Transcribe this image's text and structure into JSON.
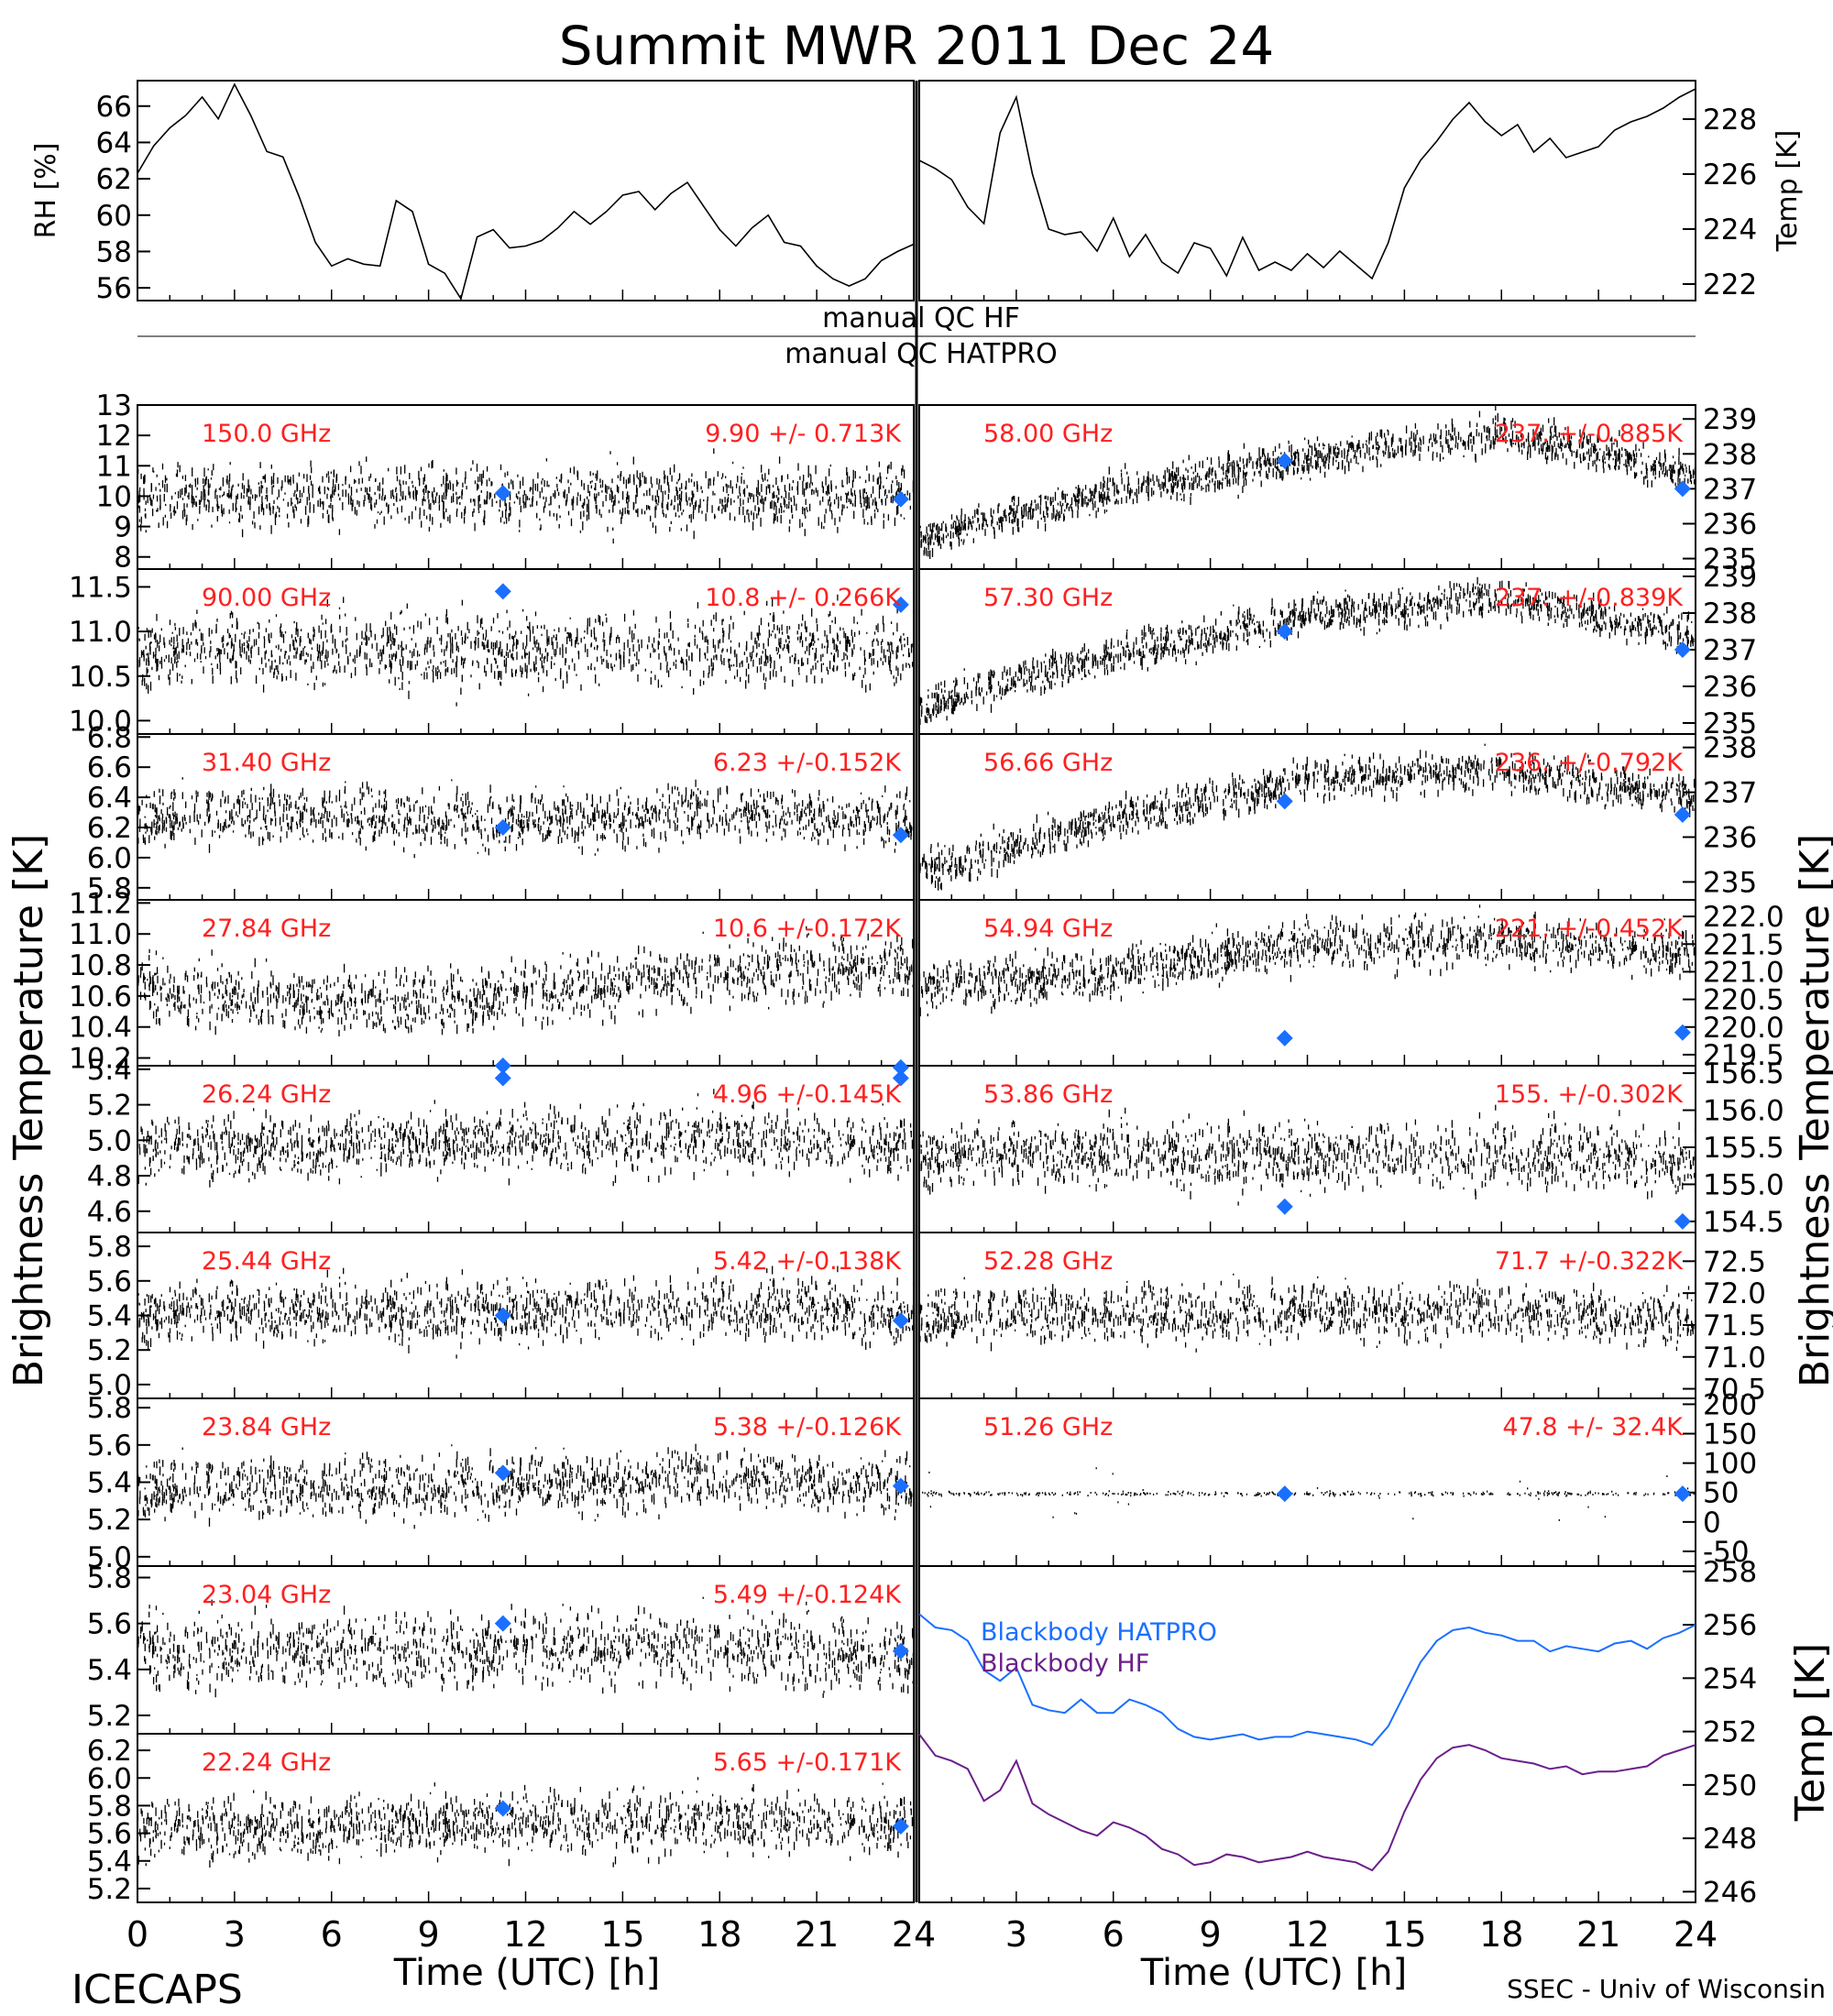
{
  "title": "Summit MWR 2011 Dec 24",
  "footer_left": "ICECAPS",
  "footer_right": "SSEC - Univ of Wisconsin",
  "xlabel": "Time (UTC) [h]",
  "xticks": [
    "0",
    "3",
    "6",
    "9",
    "12",
    "15",
    "18",
    "21",
    "24"
  ],
  "ylabel_main": "Brightness Temperature [K]",
  "qc_labels": [
    "manual QC HF",
    "manual QC HATPRO"
  ],
  "colors": {
    "data": "#000000",
    "label": "#ff2020",
    "marker": "#1a6fff",
    "hatpro": "#1a6fff",
    "hf": "#6b1f8a"
  },
  "chart_data": [
    {
      "id": "rh",
      "type": "line",
      "ylabel": "RH [%]",
      "ylim": [
        55.3,
        67.4
      ],
      "yticks": [
        "56",
        "58",
        "60",
        "62",
        "64",
        "66"
      ],
      "x": [
        0,
        0.5,
        1,
        1.5,
        2,
        2.5,
        3,
        3.5,
        4,
        4.5,
        5,
        5.5,
        6,
        6.5,
        7,
        7.5,
        8,
        8.5,
        9,
        9.5,
        10,
        10.5,
        11,
        11.5,
        12,
        12.5,
        13,
        13.5,
        14,
        14.5,
        15,
        15.5,
        16,
        16.5,
        17,
        17.5,
        18,
        18.5,
        19,
        19.5,
        20,
        20.5,
        21,
        21.5,
        22,
        22.5,
        23,
        23.5,
        24
      ],
      "values": [
        62.3,
        63.8,
        64.8,
        65.5,
        66.5,
        65.3,
        67.2,
        65.5,
        63.5,
        63.2,
        61.0,
        58.5,
        57.2,
        57.6,
        57.3,
        57.2,
        60.8,
        60.2,
        57.3,
        56.8,
        55.4,
        58.8,
        59.2,
        58.2,
        58.3,
        58.6,
        59.3,
        60.2,
        59.5,
        60.2,
        61.1,
        61.3,
        60.3,
        61.2,
        61.8,
        60.5,
        59.2,
        58.3,
        59.3,
        60.0,
        58.5,
        58.3,
        57.2,
        56.5,
        56.1,
        56.5,
        57.5,
        58.0,
        58.4
      ]
    },
    {
      "id": "temp",
      "type": "line",
      "ylabel": "Temp [K]",
      "ylim": [
        221.4,
        229.4
      ],
      "yticks": [
        "222",
        "224",
        "226",
        "228"
      ],
      "x": [
        0,
        0.5,
        1,
        1.5,
        2,
        2.5,
        3,
        3.5,
        4,
        4.5,
        5,
        5.5,
        6,
        6.5,
        7,
        7.5,
        8,
        8.5,
        9,
        9.5,
        10,
        10.5,
        11,
        11.5,
        12,
        12.5,
        13,
        13.5,
        14,
        14.5,
        15,
        15.5,
        16,
        16.5,
        17,
        17.5,
        18,
        18.5,
        19,
        19.5,
        20,
        20.5,
        21,
        21.5,
        22,
        22.5,
        23,
        23.5,
        24
      ],
      "values": [
        226.5,
        226.2,
        225.8,
        224.8,
        224.2,
        227.5,
        228.8,
        226.0,
        224.0,
        223.8,
        223.9,
        223.2,
        224.4,
        223.0,
        223.8,
        222.8,
        222.4,
        223.5,
        223.3,
        222.3,
        223.7,
        222.5,
        222.8,
        222.5,
        223.1,
        222.6,
        223.2,
        222.7,
        222.2,
        223.5,
        225.5,
        226.5,
        227.2,
        228.0,
        228.6,
        227.9,
        227.4,
        227.8,
        226.8,
        227.3,
        226.6,
        226.8,
        227.0,
        227.6,
        227.9,
        228.1,
        228.4,
        228.8,
        229.1
      ]
    },
    {
      "id": "ch150",
      "type": "scatter",
      "label": "150.0 GHz",
      "stat": "9.90 +/- 0.713K",
      "ylim": [
        7.6,
        13.0
      ],
      "yticks": [
        "8",
        "9",
        "10",
        "11",
        "12",
        "13"
      ],
      "base": [
        10.0,
        10.0,
        10.0,
        10.0,
        10.0
      ],
      "noise": 0.7,
      "markers": [
        [
          11.3,
          10.1
        ],
        [
          23.6,
          9.9
        ]
      ]
    },
    {
      "id": "ch58",
      "type": "scatter",
      "label": "58.00 GHz",
      "stat": "237. +/-0.885K",
      "ylim": [
        234.7,
        239.4
      ],
      "yticks": [
        "235",
        "236",
        "237",
        "238",
        "239"
      ],
      "base": [
        235.6,
        236.9,
        237.9,
        238.6,
        237.4
      ],
      "noise": 0.35,
      "markers": [
        [
          11.3,
          237.8
        ],
        [
          23.6,
          237.0
        ]
      ]
    },
    {
      "id": "ch90",
      "type": "scatter",
      "label": "90.00 GHz",
      "stat": "10.8 +/- 0.266K",
      "ylim": [
        9.85,
        11.7
      ],
      "yticks": [
        "10.0",
        "10.5",
        "11.0",
        "11.5"
      ],
      "base": [
        10.8,
        10.8,
        10.8,
        10.8,
        10.8
      ],
      "noise": 0.28,
      "markers": [
        [
          11.3,
          11.45
        ],
        [
          23.6,
          11.3
        ]
      ]
    },
    {
      "id": "ch573",
      "type": "scatter",
      "label": "57.30 GHz",
      "stat": "237. +/-0.839K",
      "ylim": [
        234.7,
        239.2
      ],
      "yticks": [
        "235",
        "236",
        "237",
        "238",
        "239"
      ],
      "base": [
        235.4,
        236.9,
        237.9,
        238.4,
        237.4
      ],
      "noise": 0.35,
      "markers": [
        [
          11.3,
          237.5
        ],
        [
          23.6,
          237.0
        ]
      ]
    },
    {
      "id": "ch314",
      "type": "scatter",
      "label": "31.40 GHz",
      "stat": "6.23 +/-0.152K",
      "ylim": [
        5.72,
        6.82
      ],
      "yticks": [
        "5.8",
        "6.0",
        "6.2",
        "6.4",
        "6.6",
        "6.8"
      ],
      "base": [
        6.25,
        6.3,
        6.23,
        6.3,
        6.25
      ],
      "noise": 0.13,
      "markers": [
        [
          11.3,
          6.2
        ],
        [
          23.6,
          6.15
        ]
      ]
    },
    {
      "id": "ch5666",
      "type": "scatter",
      "label": "56.66 GHz",
      "stat": "236. +/-0.792K",
      "ylim": [
        234.6,
        238.3
      ],
      "yticks": [
        "235",
        "236",
        "237",
        "238"
      ],
      "base": [
        235.2,
        236.4,
        237.3,
        237.5,
        236.9
      ],
      "noise": 0.3,
      "markers": [
        [
          11.3,
          236.8
        ],
        [
          23.6,
          236.5
        ]
      ]
    },
    {
      "id": "ch2784",
      "type": "scatter",
      "label": "27.84 GHz",
      "stat": "10.6 +/-0.172K",
      "ylim": [
        10.15,
        11.22
      ],
      "yticks": [
        "10.2",
        "10.4",
        "10.6",
        "10.8",
        "11.0",
        "11.2"
      ],
      "base": [
        10.65,
        10.55,
        10.62,
        10.75,
        10.8
      ],
      "noise": 0.14,
      "markers": [
        [
          11.3,
          10.07
        ],
        [
          23.6,
          10.07
        ]
      ]
    },
    {
      "id": "ch5494",
      "type": "scatter",
      "label": "54.94 GHz",
      "stat": "221. +/-0.452K",
      "ylim": [
        219.3,
        222.3
      ],
      "yticks": [
        "219.5",
        "220.0",
        "220.5",
        "221.0",
        "221.5",
        "222.0"
      ],
      "base": [
        220.7,
        221.0,
        221.5,
        221.6,
        221.3
      ],
      "noise": 0.3,
      "markers": [
        [
          11.3,
          219.8
        ],
        [
          23.6,
          219.9
        ]
      ]
    },
    {
      "id": "ch2624",
      "type": "scatter",
      "label": "26.24 GHz",
      "stat": "4.96 +/-0.145K",
      "ylim": [
        4.48,
        5.42
      ],
      "yticks": [
        "4.6",
        "4.8",
        "5.0",
        "5.2",
        "5.4"
      ],
      "base": [
        4.95,
        4.97,
        5.0,
        5.02,
        4.95
      ],
      "noise": 0.12,
      "markers": [
        [
          11.3,
          5.42
        ],
        [
          23.6,
          5.41
        ]
      ]
    },
    {
      "id": "ch5386",
      "type": "scatter",
      "label": "53.86 GHz",
      "stat": "155. +/-0.302K",
      "ylim": [
        154.35,
        156.6
      ],
      "yticks": [
        "154.5",
        "155.0",
        "155.5",
        "156.0",
        "156.5"
      ],
      "base": [
        155.4,
        155.4,
        155.4,
        155.4,
        155.3
      ],
      "noise": 0.3,
      "markers": [
        [
          11.3,
          154.7
        ],
        [
          23.6,
          154.5
        ]
      ]
    },
    {
      "id": "ch2544",
      "type": "scatter",
      "label": "25.44 GHz",
      "stat": "5.42 +/-0.138K",
      "ylim": [
        4.92,
        5.88
      ],
      "yticks": [
        "5.0",
        "5.2",
        "5.4",
        "5.6",
        "5.8"
      ],
      "base": [
        5.42,
        5.42,
        5.43,
        5.45,
        5.4
      ],
      "noise": 0.12,
      "markers": [
        [
          11.3,
          5.4
        ],
        [
          23.6,
          5.37
        ]
      ]
    },
    {
      "id": "ch5228",
      "type": "scatter",
      "label": "52.28 GHz",
      "stat": "71.7 +/-0.322K",
      "ylim": [
        70.35,
        72.95
      ],
      "yticks": [
        "70.5",
        "71.0",
        "71.5",
        "72.0",
        "72.5"
      ],
      "base": [
        71.6,
        71.7,
        71.7,
        71.7,
        71.6
      ],
      "noise": 0.3,
      "markers": []
    },
    {
      "id": "ch2384",
      "type": "scatter",
      "label": "23.84 GHz",
      "stat": "5.38 +/-0.126K",
      "ylim": [
        4.95,
        5.85
      ],
      "yticks": [
        "5.0",
        "5.2",
        "5.4",
        "5.6",
        "5.8"
      ],
      "base": [
        5.35,
        5.38,
        5.38,
        5.42,
        5.38
      ],
      "noise": 0.11,
      "markers": [
        [
          11.3,
          5.45
        ],
        [
          23.6,
          5.38
        ]
      ]
    },
    {
      "id": "ch5126",
      "type": "scatter",
      "label": "51.26 GHz",
      "stat": "47.8 +/- 32.4K",
      "ylim": [
        -75,
        210
      ],
      "yticks": [
        "-50",
        "0",
        "50",
        "100",
        "150",
        "200"
      ],
      "base": [
        47.8,
        47.8,
        47.8,
        47.8,
        47.8
      ],
      "noise": 2.5,
      "markers": [
        [
          11.3,
          47.8
        ],
        [
          23.6,
          47.8
        ]
      ]
    },
    {
      "id": "ch2304",
      "type": "scatter",
      "label": "23.04 GHz",
      "stat": "5.49 +/-0.124K",
      "ylim": [
        5.12,
        5.85
      ],
      "yticks": [
        "5.2",
        "5.4",
        "5.6",
        "5.8"
      ],
      "base": [
        5.48,
        5.48,
        5.5,
        5.5,
        5.45
      ],
      "noise": 0.11,
      "markers": [
        [
          11.3,
          5.6
        ],
        [
          23.6,
          5.48
        ]
      ]
    },
    {
      "id": "ch2224",
      "type": "scatter",
      "label": "22.24 GHz",
      "stat": "5.65 +/-0.171K",
      "ylim": [
        5.1,
        6.32
      ],
      "yticks": [
        "5.2",
        "5.4",
        "5.6",
        "5.8",
        "6.0",
        "6.2"
      ],
      "base": [
        5.62,
        5.65,
        5.68,
        5.7,
        5.65
      ],
      "noise": 0.15,
      "markers": [
        [
          11.3,
          5.78
        ],
        [
          23.6,
          5.65
        ]
      ]
    },
    {
      "id": "blackbody",
      "type": "line",
      "ylabel": "Temp [K]",
      "ylim": [
        245.6,
        258.2
      ],
      "yticks": [
        "246",
        "248",
        "250",
        "252",
        "254",
        "256",
        "258"
      ],
      "series": [
        {
          "name": "Blackbody HATPRO",
          "color": "#1a6fff",
          "x": [
            0,
            0.5,
            1,
            1.5,
            2,
            2.5,
            3,
            3.5,
            4,
            4.5,
            5,
            5.5,
            6,
            6.5,
            7,
            7.5,
            8,
            8.5,
            9,
            9.5,
            10,
            10.5,
            11,
            11.5,
            12,
            12.5,
            13,
            13.5,
            14,
            14.5,
            15,
            15.5,
            16,
            16.5,
            17,
            17.5,
            18,
            18.5,
            19,
            19.5,
            20,
            20.5,
            21,
            21.5,
            22,
            22.5,
            23,
            23.5,
            24
          ],
          "values": [
            256.4,
            255.9,
            255.8,
            255.4,
            254.3,
            253.9,
            254.4,
            253.0,
            252.8,
            252.7,
            253.2,
            252.7,
            252.7,
            253.2,
            253.0,
            252.7,
            252.1,
            251.8,
            251.7,
            251.8,
            251.9,
            251.7,
            251.8,
            251.8,
            252.0,
            251.9,
            251.8,
            251.7,
            251.5,
            252.2,
            253.4,
            254.6,
            255.4,
            255.8,
            255.9,
            255.7,
            255.6,
            255.4,
            255.4,
            255.0,
            255.2,
            255.1,
            255.0,
            255.3,
            255.4,
            255.1,
            255.5,
            255.7,
            256.0
          ]
        },
        {
          "name": "Blackbody HF",
          "color": "#6b1f8a",
          "x": [
            0,
            0.5,
            1,
            1.5,
            2,
            2.5,
            3,
            3.5,
            4,
            4.5,
            5,
            5.5,
            6,
            6.5,
            7,
            7.5,
            8,
            8.5,
            9,
            9.5,
            10,
            10.5,
            11,
            11.5,
            12,
            12.5,
            13,
            13.5,
            14,
            14.5,
            15,
            15.5,
            16,
            16.5,
            17,
            17.5,
            18,
            18.5,
            19,
            19.5,
            20,
            20.5,
            21,
            21.5,
            22,
            22.5,
            23,
            23.5,
            24
          ],
          "values": [
            251.9,
            251.1,
            250.9,
            250.6,
            249.4,
            249.8,
            250.9,
            249.3,
            248.9,
            248.6,
            248.3,
            248.1,
            248.6,
            248.4,
            248.1,
            247.6,
            247.4,
            247.0,
            247.1,
            247.4,
            247.3,
            247.1,
            247.2,
            247.3,
            247.5,
            247.3,
            247.2,
            247.1,
            246.8,
            247.5,
            249.0,
            250.2,
            251.0,
            251.4,
            251.5,
            251.3,
            251.0,
            250.9,
            250.8,
            250.6,
            250.7,
            250.4,
            250.5,
            250.5,
            250.6,
            250.7,
            251.1,
            251.3,
            251.5
          ]
        }
      ]
    }
  ]
}
